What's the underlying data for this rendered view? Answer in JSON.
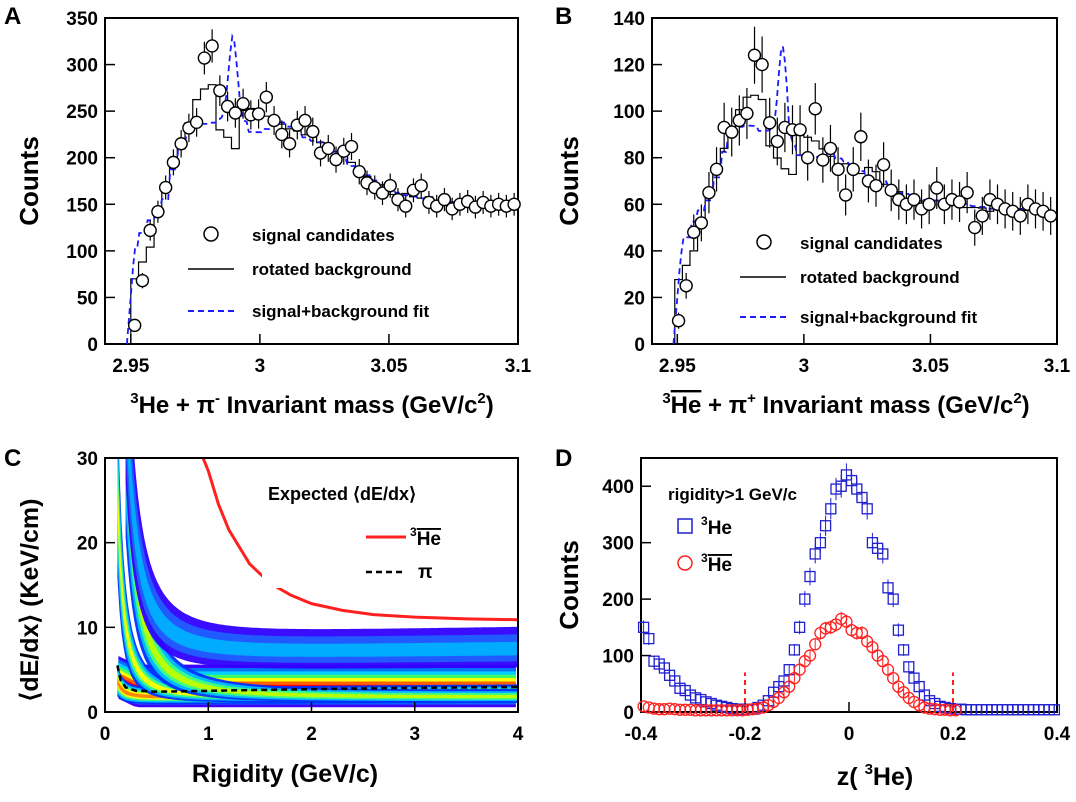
{
  "chart_data": [
    {
      "panel_label": "A",
      "type": "scatter",
      "xlabel_parts": {
        "pre": "3",
        "main": "He + π",
        "sup": "-",
        "rest": " Invariant mass (GeV/c",
        "sup2": "2",
        "end": ")"
      },
      "ylabel": "Counts",
      "xlim": [
        2.94,
        3.1
      ],
      "ylim": [
        0,
        350
      ],
      "xticks": [
        "2.95",
        "3",
        "3.05",
        "3.1"
      ],
      "xtick_values": [
        2.95,
        3.0,
        3.05,
        3.1
      ],
      "yticks": [
        "0",
        "50",
        "100",
        "150",
        "200",
        "250",
        "300",
        "350"
      ],
      "ytick_values": [
        0,
        50,
        100,
        150,
        200,
        250,
        300,
        350
      ],
      "legend": [
        "signal candidates",
        "rotated background",
        "signal+background fit"
      ],
      "series": [
        {
          "name": "signal candidates",
          "marker": "circle",
          "x": [
            2.9515,
            2.9545,
            2.9575,
            2.9605,
            2.9635,
            2.9665,
            2.9695,
            2.9725,
            2.9755,
            2.9785,
            2.9815,
            2.9845,
            2.9875,
            2.9905,
            2.9935,
            2.9965,
            2.9995,
            3.0025,
            3.0055,
            3.0085,
            3.0115,
            3.0145,
            3.0175,
            3.0205,
            3.0235,
            3.0265,
            3.0295,
            3.0325,
            3.0355,
            3.0385,
            3.0415,
            3.0445,
            3.0475,
            3.0505,
            3.0535,
            3.0565,
            3.0595,
            3.0625,
            3.0655,
            3.0685,
            3.0715,
            3.0745,
            3.0775,
            3.0805,
            3.0835,
            3.0865,
            3.0895,
            3.0925,
            3.0955,
            3.0985
          ],
          "y": [
            20,
            68,
            122,
            142,
            168,
            195,
            215,
            232,
            238,
            307,
            320,
            272,
            255,
            248,
            258,
            246,
            247,
            265,
            240,
            225,
            215,
            235,
            240,
            228,
            205,
            210,
            198,
            207,
            212,
            185,
            173,
            168,
            162,
            170,
            155,
            148,
            165,
            170,
            152,
            148,
            155,
            145,
            150,
            153,
            147,
            152,
            148,
            150,
            148,
            150
          ]
        },
        {
          "name": "rotated background",
          "style": "histogram"
        },
        {
          "name": "signal+background fit",
          "style": "dashed",
          "color": "#1a1aff"
        }
      ]
    },
    {
      "panel_label": "B",
      "type": "scatter",
      "xlabel_parts": {
        "pre": "3",
        "main": "He",
        "main_overline": true,
        "mid": " + π",
        "sup": "+",
        "rest": " Invariant mass (GeV/c",
        "sup2": "2",
        "end": ")"
      },
      "ylabel": "Counts",
      "xlim": [
        2.94,
        3.1
      ],
      "ylim": [
        0,
        140
      ],
      "xticks": [
        "2.95",
        "3",
        "3.05",
        "3.1"
      ],
      "xtick_values": [
        2.95,
        3.0,
        3.05,
        3.1
      ],
      "yticks": [
        "0",
        "20",
        "40",
        "60",
        "80",
        "100",
        "120",
        "140"
      ],
      "ytick_values": [
        0,
        20,
        40,
        60,
        80,
        100,
        120,
        140
      ],
      "legend": [
        "signal candidates",
        "rotated background",
        "signal+background fit"
      ],
      "series": [
        {
          "name": "signal candidates",
          "marker": "circle",
          "x": [
            2.9505,
            2.9535,
            2.9565,
            2.9595,
            2.9625,
            2.9655,
            2.9685,
            2.9715,
            2.9745,
            2.9775,
            2.9805,
            2.9835,
            2.9865,
            2.9895,
            2.9925,
            2.9955,
            2.9985,
            3.0015,
            3.0045,
            3.0075,
            3.0105,
            3.0135,
            3.0165,
            3.0195,
            3.0225,
            3.0255,
            3.0285,
            3.0315,
            3.0345,
            3.0375,
            3.0405,
            3.0435,
            3.0465,
            3.0495,
            3.0525,
            3.0555,
            3.0585,
            3.0615,
            3.0645,
            3.0675,
            3.0705,
            3.0735,
            3.0765,
            3.0795,
            3.0825,
            3.0855,
            3.0885,
            3.0915,
            3.0945,
            3.0975
          ],
          "y": [
            10,
            25,
            48,
            52,
            65,
            75,
            93,
            91,
            96,
            99,
            124,
            120,
            95,
            87,
            93,
            92,
            92,
            80,
            101,
            79,
            84,
            75,
            64,
            75,
            89,
            70,
            68,
            77,
            66,
            62,
            60,
            62,
            58,
            60,
            67,
            60,
            62,
            61,
            65,
            50,
            55,
            62,
            60,
            58,
            57,
            55,
            60,
            58,
            57,
            55
          ]
        },
        {
          "name": "rotated background",
          "style": "histogram"
        },
        {
          "name": "signal+background fit",
          "style": "dashed",
          "color": "#1a1aff"
        }
      ]
    },
    {
      "panel_label": "C",
      "type": "heatmap",
      "xlabel": "Rigidity (GeV/c)",
      "ylabel": "⟨dE/dx⟩ (KeV/cm)",
      "xlim": [
        0,
        4
      ],
      "ylim": [
        0,
        30
      ],
      "xticks": [
        "0",
        "1",
        "2",
        "3",
        "4"
      ],
      "xtick_values": [
        0,
        1,
        2,
        3,
        4
      ],
      "yticks": [
        "0",
        "10",
        "20",
        "30"
      ],
      "ytick_values": [
        0,
        10,
        20,
        30
      ],
      "legend_title": "Expected ⟨dE/dx⟩",
      "legend": [
        {
          "sup": "3",
          "label": "He",
          "overline": true,
          "color": "#ff2020",
          "style": "solid"
        },
        {
          "label": "π",
          "color": "#000000",
          "style": "dashed"
        }
      ],
      "expected_curves": {
        "he3bar": {
          "x": [
            0.95,
            1.0,
            1.1,
            1.2,
            1.4,
            1.6,
            1.8,
            2.0,
            2.3,
            2.6,
            3.0,
            3.5,
            4.0
          ],
          "y": [
            30,
            28.5,
            24.5,
            21.5,
            17.5,
            15.2,
            13.8,
            12.8,
            12.0,
            11.5,
            11.2,
            11.0,
            10.9
          ]
        },
        "pi": {
          "x": [
            0.12,
            0.15,
            0.2,
            0.3,
            0.5,
            0.8,
            1.2,
            2.0,
            3.0,
            4.0
          ],
          "y": [
            5.5,
            3.8,
            2.9,
            2.5,
            2.4,
            2.45,
            2.55,
            2.7,
            2.85,
            2.95
          ]
        }
      }
    },
    {
      "panel_label": "D",
      "type": "scatter",
      "xlabel_parts": {
        "main": "z( ",
        "sup": "3",
        "end": "He)"
      },
      "ylabel": "Counts",
      "xlim": [
        -0.4,
        0.4
      ],
      "ylim": [
        0,
        450
      ],
      "xticks": [
        "-0.4",
        "-0.2",
        "0",
        "0.2",
        "0.4"
      ],
      "xtick_values": [
        -0.4,
        -0.2,
        0,
        0.2,
        0.4
      ],
      "yticks": [
        "0",
        "100",
        "200",
        "300",
        "400"
      ],
      "ytick_values": [
        0,
        100,
        200,
        300,
        400
      ],
      "annotation": "rigidity>1 GeV/c",
      "cut_lines": [
        -0.2,
        0.2
      ],
      "legend": [
        {
          "sup": "3",
          "label": "He",
          "overline": false,
          "marker": "square",
          "color": "#2020d0"
        },
        {
          "sup": "3",
          "label": "He",
          "overline": true,
          "marker": "circle",
          "color": "#ff2020"
        }
      ],
      "series": [
        {
          "name": "3He",
          "marker": "square",
          "color": "#2020d0",
          "x": [
            -0.395,
            -0.385,
            -0.375,
            -0.365,
            -0.355,
            -0.345,
            -0.335,
            -0.325,
            -0.315,
            -0.305,
            -0.295,
            -0.285,
            -0.275,
            -0.265,
            -0.255,
            -0.245,
            -0.235,
            -0.225,
            -0.215,
            -0.205,
            -0.195,
            -0.185,
            -0.175,
            -0.165,
            -0.155,
            -0.145,
            -0.135,
            -0.125,
            -0.115,
            -0.105,
            -0.095,
            -0.085,
            -0.075,
            -0.065,
            -0.055,
            -0.045,
            -0.035,
            -0.025,
            -0.015,
            -0.005,
            0.005,
            0.015,
            0.025,
            0.035,
            0.045,
            0.055,
            0.065,
            0.075,
            0.085,
            0.095,
            0.105,
            0.115,
            0.125,
            0.135,
            0.145,
            0.155,
            0.165,
            0.175,
            0.185,
            0.195,
            0.205,
            0.215,
            0.225,
            0.235,
            0.245,
            0.255,
            0.265,
            0.275,
            0.285,
            0.295,
            0.305,
            0.315,
            0.325,
            0.335,
            0.345,
            0.355,
            0.365,
            0.375,
            0.385,
            0.395
          ],
          "y": [
            150,
            130,
            90,
            85,
            78,
            65,
            55,
            42,
            38,
            30,
            25,
            22,
            18,
            15,
            12,
            10,
            8,
            6,
            5,
            5,
            5,
            5,
            8,
            12,
            20,
            35,
            45,
            55,
            75,
            110,
            150,
            200,
            240,
            280,
            300,
            330,
            360,
            395,
            400,
            420,
            410,
            395,
            380,
            360,
            300,
            290,
            280,
            220,
            200,
            145,
            110,
            80,
            60,
            45,
            30,
            20,
            15,
            10,
            8,
            6,
            5,
            5,
            4,
            4,
            4,
            4,
            4,
            4,
            4,
            4,
            4,
            4,
            4,
            4,
            4,
            4,
            4,
            4,
            4,
            4
          ]
        },
        {
          "name": "3He-bar",
          "marker": "circle",
          "color": "#ff2020",
          "x": [
            -0.395,
            -0.385,
            -0.375,
            -0.365,
            -0.355,
            -0.345,
            -0.335,
            -0.325,
            -0.315,
            -0.305,
            -0.295,
            -0.285,
            -0.275,
            -0.265,
            -0.255,
            -0.245,
            -0.235,
            -0.225,
            -0.215,
            -0.205,
            -0.195,
            -0.185,
            -0.175,
            -0.165,
            -0.155,
            -0.145,
            -0.135,
            -0.125,
            -0.115,
            -0.105,
            -0.095,
            -0.085,
            -0.075,
            -0.065,
            -0.055,
            -0.045,
            -0.035,
            -0.025,
            -0.015,
            -0.005,
            0.005,
            0.015,
            0.025,
            0.035,
            0.045,
            0.055,
            0.065,
            0.075,
            0.085,
            0.095,
            0.105,
            0.115,
            0.125,
            0.135,
            0.145,
            0.155,
            0.165,
            0.175,
            0.185,
            0.195,
            0.205
          ],
          "y": [
            10,
            8,
            6,
            5,
            5,
            6,
            5,
            4,
            4,
            4,
            3,
            3,
            3,
            3,
            3,
            3,
            3,
            3,
            3,
            3,
            4,
            5,
            6,
            8,
            12,
            18,
            25,
            35,
            45,
            60,
            75,
            90,
            100,
            120,
            140,
            148,
            150,
            155,
            165,
            160,
            145,
            140,
            140,
            125,
            115,
            100,
            90,
            75,
            60,
            45,
            35,
            25,
            18,
            12,
            8,
            6,
            5,
            4,
            4,
            3,
            3
          ]
        }
      ]
    }
  ]
}
